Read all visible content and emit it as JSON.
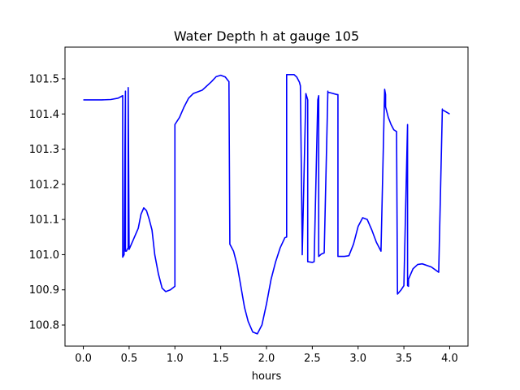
{
  "chart_data": {
    "type": "line",
    "title": "Water Depth h at gauge 105",
    "xlabel": "hours",
    "ylabel": "",
    "xlim": [
      -0.2,
      4.2
    ],
    "ylim": [
      100.74,
      101.59
    ],
    "xticks": [
      "0.0",
      "0.5",
      "1.0",
      "1.5",
      "2.0",
      "2.5",
      "3.0",
      "3.5",
      "4.0"
    ],
    "yticks": [
      "100.8",
      "100.9",
      "101.0",
      "101.1",
      "101.2",
      "101.3",
      "101.4",
      "101.5"
    ],
    "grid": false,
    "series": [
      {
        "color": "#0000ff",
        "x": [
          0.0,
          0.2,
          0.3,
          0.38,
          0.43,
          0.43,
          0.445,
          0.46,
          0.46,
          0.47,
          0.49,
          0.49,
          0.5,
          0.55,
          0.6,
          0.63,
          0.66,
          0.69,
          0.72,
          0.75,
          0.78,
          0.82,
          0.86,
          0.9,
          0.95,
          0.99,
          1.0,
          1.0,
          1.05,
          1.1,
          1.15,
          1.2,
          1.3,
          1.4,
          1.45,
          1.5,
          1.55,
          1.58,
          1.59,
          1.6,
          1.64,
          1.68,
          1.72,
          1.76,
          1.8,
          1.85,
          1.9,
          1.95,
          2.0,
          2.05,
          2.1,
          2.15,
          2.2,
          2.22,
          2.22,
          2.3,
          2.33,
          2.36,
          2.37,
          2.39,
          2.39,
          2.43,
          2.45,
          2.45,
          2.5,
          2.52,
          2.56,
          2.57,
          2.57,
          2.6,
          2.63,
          2.67,
          2.67,
          2.7,
          2.77,
          2.78,
          2.78,
          2.8,
          2.85,
          2.9,
          2.95,
          3.0,
          3.05,
          3.1,
          3.15,
          3.2,
          3.25,
          3.29,
          3.3,
          3.3,
          3.33,
          3.36,
          3.39,
          3.42,
          3.43,
          3.43,
          3.47,
          3.5,
          3.54,
          3.54,
          3.55,
          3.55,
          3.6,
          3.65,
          3.7,
          3.8,
          3.88,
          3.92,
          3.92,
          4.0
        ],
        "y": [
          101.44,
          101.44,
          101.441,
          101.445,
          101.452,
          100.993,
          101.0,
          101.465,
          101.01,
          101.01,
          101.02,
          101.475,
          101.015,
          101.045,
          101.075,
          101.115,
          101.133,
          101.125,
          101.1,
          101.07,
          101.0,
          100.945,
          100.905,
          100.895,
          100.9,
          100.908,
          100.91,
          101.37,
          101.39,
          101.42,
          101.445,
          101.458,
          101.468,
          101.492,
          101.506,
          101.51,
          101.505,
          101.495,
          101.492,
          101.03,
          101.01,
          100.97,
          100.91,
          100.85,
          100.81,
          100.78,
          100.775,
          100.8,
          100.86,
          100.93,
          100.98,
          101.02,
          101.048,
          101.05,
          101.512,
          101.512,
          101.505,
          101.49,
          101.48,
          101.02,
          101.0,
          101.458,
          101.44,
          100.98,
          100.978,
          100.98,
          101.44,
          101.452,
          100.995,
          101.002,
          101.005,
          101.465,
          101.462,
          101.46,
          101.455,
          101.455,
          100.995,
          100.995,
          100.995,
          100.997,
          101.03,
          101.08,
          101.105,
          101.1,
          101.07,
          101.035,
          101.01,
          101.47,
          101.455,
          101.42,
          101.39,
          101.37,
          101.355,
          101.35,
          100.89,
          100.888,
          100.9,
          100.912,
          101.37,
          100.912,
          100.91,
          100.93,
          100.96,
          100.972,
          100.974,
          100.965,
          100.95,
          101.414,
          101.412,
          101.4
        ]
      }
    ]
  }
}
